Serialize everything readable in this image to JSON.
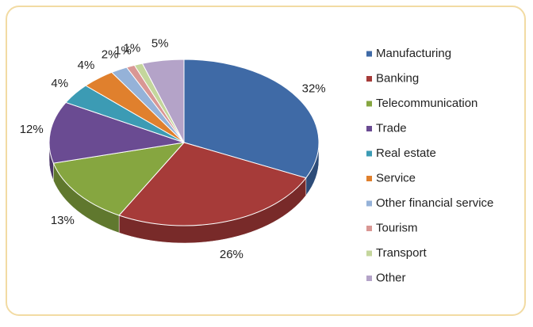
{
  "chart_data": {
    "type": "pie",
    "categories": [
      "Manufacturing",
      "Banking",
      "Telecommunication",
      "Trade",
      "Real estate",
      "Service",
      "Other financial service",
      "Tourism",
      "Transport",
      "Other"
    ],
    "values": [
      32,
      26,
      13,
      12,
      4,
      4,
      2,
      1,
      1,
      5
    ],
    "value_labels": [
      "32%",
      "26%",
      "13%",
      "12%",
      "4%",
      "4%",
      "2%",
      "1%",
      "1%",
      "5%"
    ],
    "colors": [
      "#3f6aa6",
      "#a63b39",
      "#86a640",
      "#6a4b92",
      "#3c9bb4",
      "#e0802d",
      "#95b2d8",
      "#d99794",
      "#c4d69c",
      "#b4a3c8"
    ],
    "legend": "right"
  }
}
